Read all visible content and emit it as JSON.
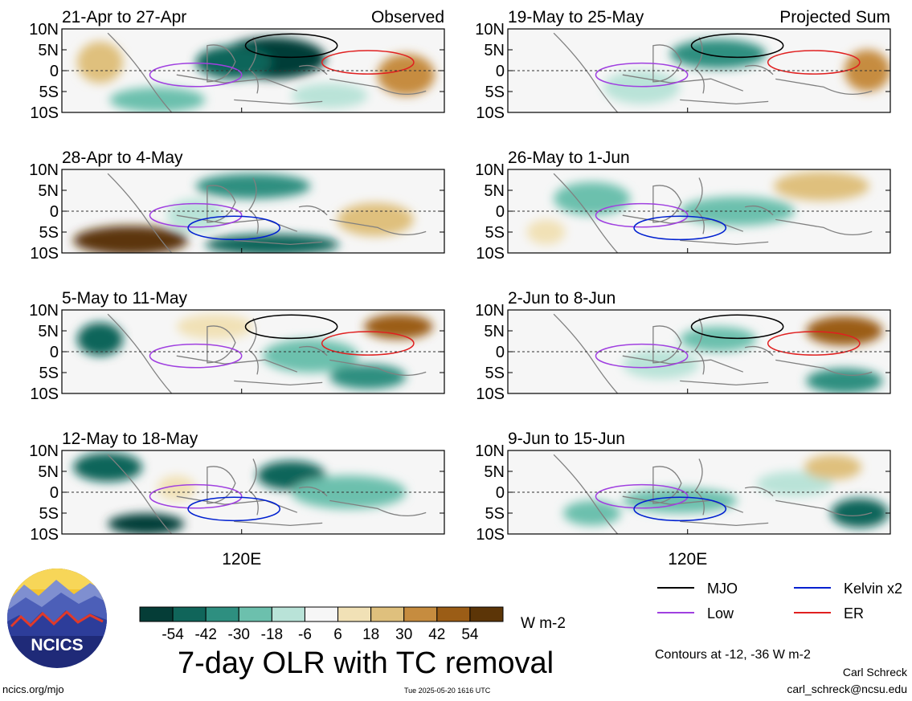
{
  "chart_data": {
    "type": "heatmap",
    "title": "7-day OLR with TC removal",
    "units": "W m-2",
    "y_ticks": [
      "10N",
      "5N",
      "0",
      "5S",
      "10S"
    ],
    "x_tick": "120E",
    "column_labels": [
      "Observed",
      "Projected Sum"
    ],
    "panels": [
      {
        "period": "21-Apr to 27-Apr",
        "column": "Observed"
      },
      {
        "period": "28-Apr to 4-May",
        "column": "Observed"
      },
      {
        "period": "5-May to 11-May",
        "column": "Observed"
      },
      {
        "period": "12-May to 18-May",
        "column": "Observed"
      },
      {
        "period": "19-May to 25-May",
        "column": "Projected Sum"
      },
      {
        "period": "26-May to 1-Jun",
        "column": "Projected Sum"
      },
      {
        "period": "2-Jun to 8-Jun",
        "column": "Projected Sum"
      },
      {
        "period": "9-Jun to 15-Jun",
        "column": "Projected Sum"
      }
    ],
    "colorbar": {
      "labels": [
        "-54",
        "-42",
        "-30",
        "-18",
        "-6",
        "6",
        "18",
        "30",
        "42",
        "54"
      ],
      "colors": [
        "#053d37",
        "#10655a",
        "#2e8f80",
        "#6cc0ad",
        "#b9e3d8",
        "#f6f6f6",
        "#f1e1b6",
        "#dfc07d",
        "#c68c3f",
        "#9b5d16",
        "#5c3507"
      ]
    },
    "legend": [
      {
        "name": "MJO",
        "color": "#000000"
      },
      {
        "name": "Kelvin x2",
        "color": "#0020d0"
      },
      {
        "name": "Low",
        "color": "#a040e0"
      },
      {
        "name": "ER",
        "color": "#e02020"
      }
    ],
    "contour_note": "Contours at -12, -36 W m-2"
  },
  "logo_text": "NCICS",
  "footer": {
    "url": "ncics.org/mjo",
    "timestamp": "Tue 2025-05-20 1616 UTC",
    "author": "Carl Schreck",
    "email": "carl_schreck@ncsu.edu"
  }
}
